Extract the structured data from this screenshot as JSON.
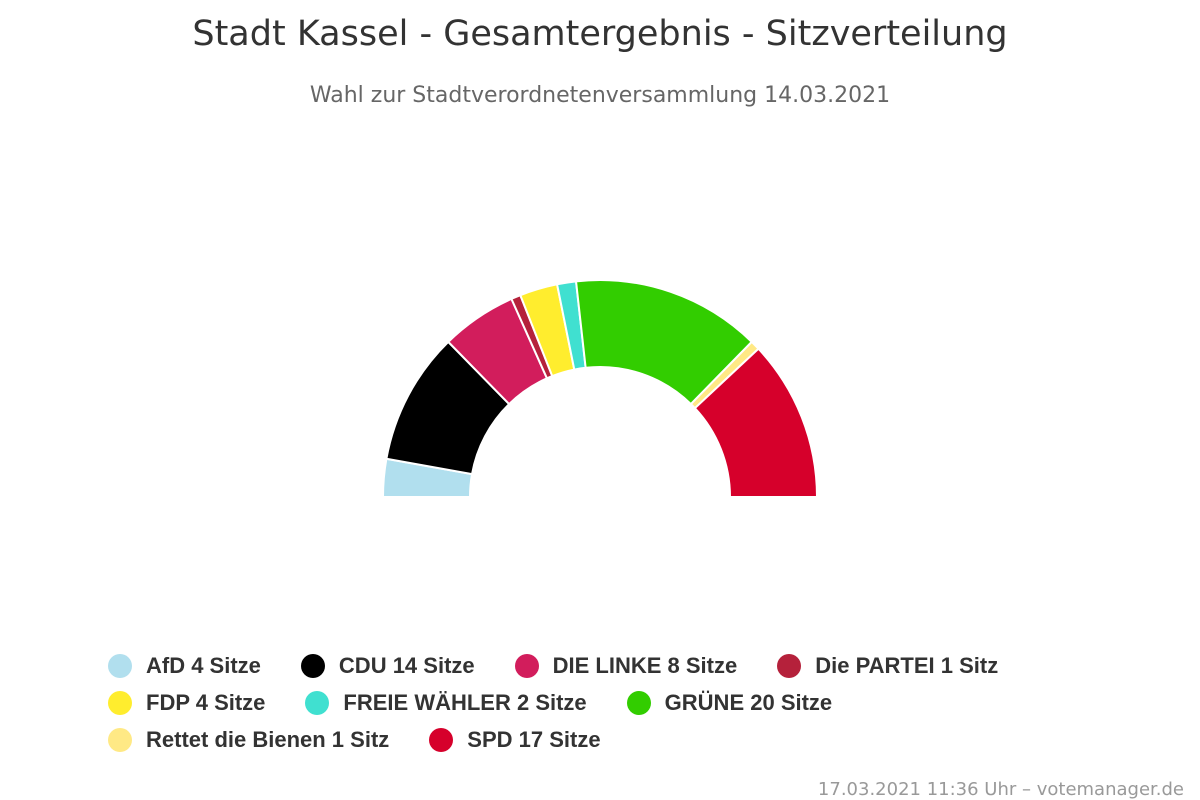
{
  "chart_data": {
    "type": "pie",
    "variant": "semicircle-parliament",
    "title": "Stadt Kassel - Gesamtergebnis - Sitzverteilung",
    "subtitle": "Wahl zur Stadtverordnetenversammlung 14.03.2021",
    "total_seats": 71,
    "legend_placement": "bottom",
    "series": [
      {
        "name": "AfD",
        "value": 4,
        "label": "AfD 4 Sitze",
        "color": "#b1dfee"
      },
      {
        "name": "CDU",
        "value": 14,
        "label": "CDU 14 Sitze",
        "color": "#000000"
      },
      {
        "name": "DIE LINKE",
        "value": 8,
        "label": "DIE LINKE 8 Sitze",
        "color": "#d21d5c"
      },
      {
        "name": "Die PARTEI",
        "value": 1,
        "label": "Die PARTEI 1 Sitz",
        "color": "#b5213b"
      },
      {
        "name": "FDP",
        "value": 4,
        "label": "FDP 4 Sitze",
        "color": "#ffed2e"
      },
      {
        "name": "FREIE WÄHLER",
        "value": 2,
        "label": "FREIE WÄHLER 2 Sitze",
        "color": "#40e0d0"
      },
      {
        "name": "GRÜNE",
        "value": 20,
        "label": "GRÜNE 20 Sitze",
        "color": "#32cd00"
      },
      {
        "name": "Rettet die Bienen",
        "value": 1,
        "label": "Rettet die Bienen 1 Sitz",
        "color": "#ffe985"
      },
      {
        "name": "SPD",
        "value": 17,
        "label": "SPD 17 Sitze",
        "color": "#d6002b"
      }
    ]
  },
  "footer": "17.03.2021 11:36 Uhr – votemanager.de"
}
